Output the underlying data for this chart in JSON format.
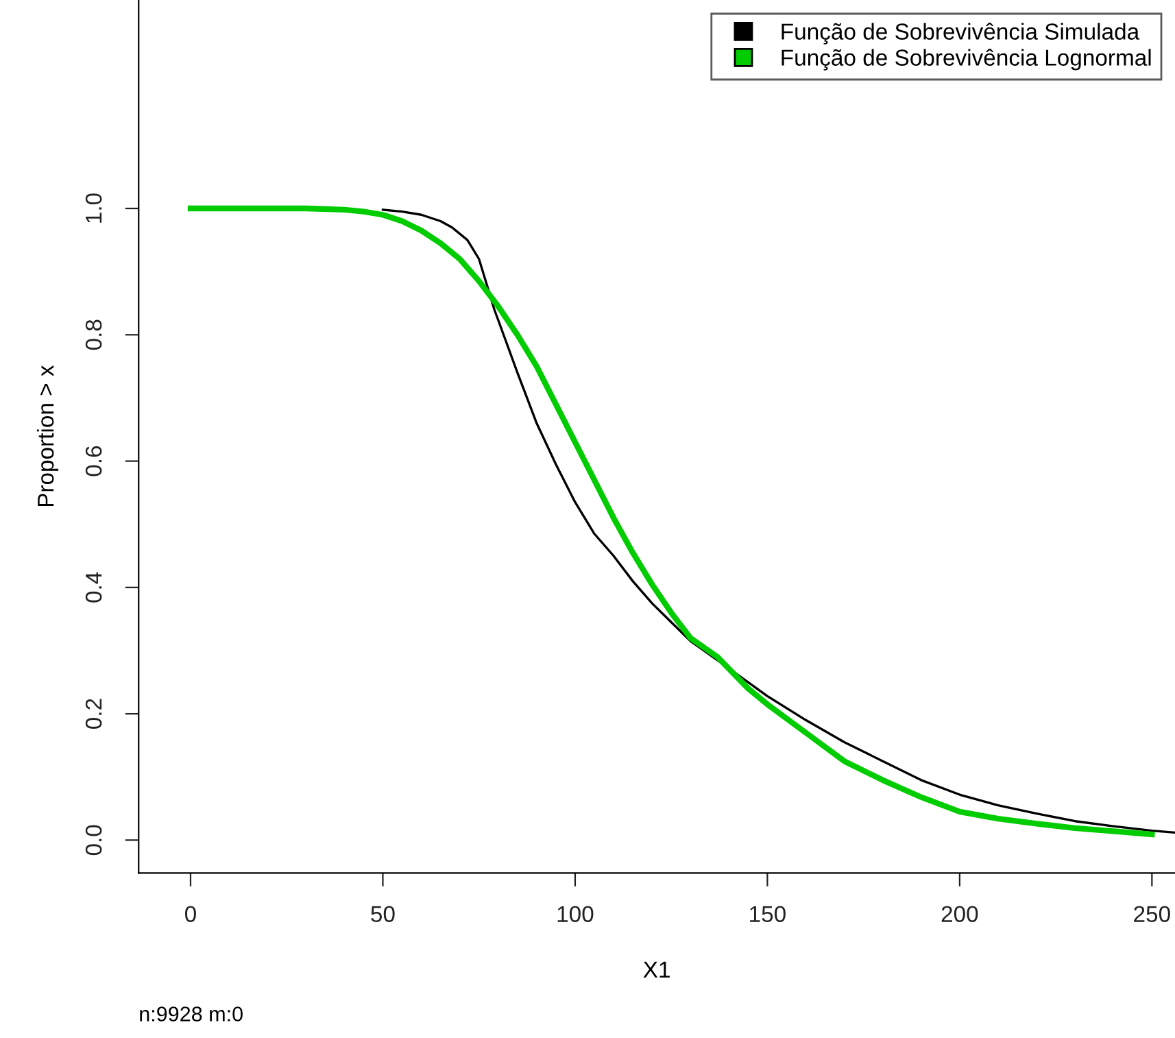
{
  "chart_data": {
    "type": "line",
    "xlabel": "X1",
    "ylabel": "Proportion > x",
    "xlim": [
      -13.5,
      256
    ],
    "xticks": [
      0,
      50,
      100,
      150,
      200,
      250
    ],
    "ylim": [
      -0.052,
      1.33
    ],
    "yticks": [
      {
        "value": 0,
        "label": "0.0"
      },
      {
        "value": 0.2,
        "label": "0.2"
      },
      {
        "value": 0.4,
        "label": "0.4"
      },
      {
        "value": 0.6,
        "label": "0.6"
      },
      {
        "value": 0.8,
        "label": "0.8"
      },
      {
        "value": 1,
        "label": "1.0"
      }
    ],
    "legend": "top right",
    "grid": false,
    "marker": "none",
    "line_style": "solid",
    "annotations": [
      "n:9928 m:0"
    ],
    "series": [
      {
        "name": "Função de Sobrevivência Simulada",
        "color": "#000000",
        "x": [
          50,
          55,
          60,
          65,
          68,
          72,
          75,
          77,
          79,
          82,
          85,
          90,
          95,
          100,
          105,
          110,
          115,
          120,
          125,
          130,
          137,
          145,
          150,
          160,
          170,
          180,
          190,
          200,
          210,
          220,
          230,
          240,
          250,
          256
        ],
        "values": [
          0.998,
          0.995,
          0.99,
          0.98,
          0.97,
          0.95,
          0.92,
          0.88,
          0.84,
          0.79,
          0.74,
          0.66,
          0.595,
          0.535,
          0.485,
          0.45,
          0.41,
          0.375,
          0.345,
          0.315,
          0.285,
          0.25,
          0.228,
          0.19,
          0.155,
          0.125,
          0.095,
          0.072,
          0.055,
          0.042,
          0.03,
          0.022,
          0.015,
          0.012
        ]
      },
      {
        "name": "Função de Sobrevivência Lognormal",
        "color": "#00cc00",
        "x": [
          0,
          20,
          30,
          40,
          45,
          50,
          55,
          60,
          65,
          70,
          75,
          80,
          85,
          90,
          95,
          100,
          105,
          110,
          115,
          120,
          125,
          130,
          137,
          145,
          150,
          160,
          170,
          180,
          190,
          200,
          210,
          220,
          230,
          240,
          250
        ],
        "values": [
          1,
          1,
          1,
          0.998,
          0.995,
          0.99,
          0.98,
          0.965,
          0.945,
          0.92,
          0.885,
          0.845,
          0.8,
          0.75,
          0.69,
          0.63,
          0.57,
          0.51,
          0.455,
          0.405,
          0.36,
          0.32,
          0.29,
          0.24,
          0.215,
          0.17,
          0.125,
          0.095,
          0.068,
          0.045,
          0.034,
          0.026,
          0.019,
          0.014,
          0.009
        ]
      }
    ]
  }
}
